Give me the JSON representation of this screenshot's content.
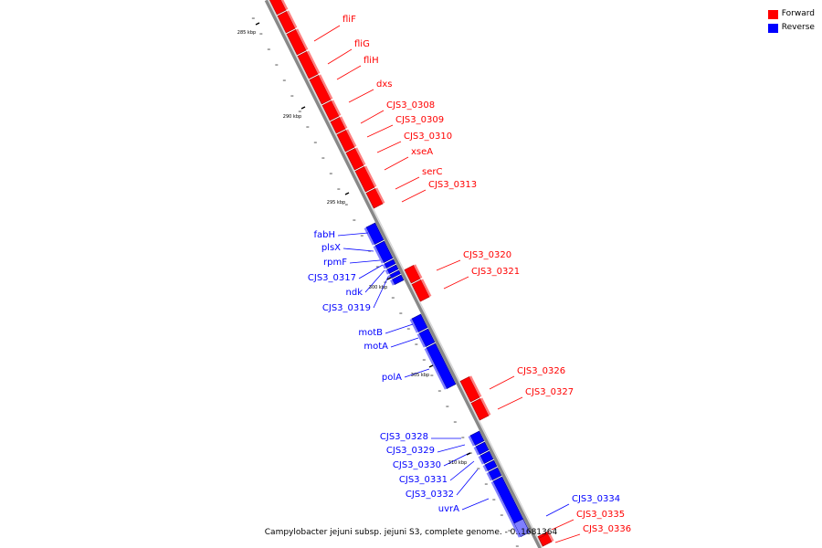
{
  "legend": {
    "forward_label": "Forward",
    "reverse_label": "Reverse",
    "forward_color": "#ff0000",
    "reverse_color": "#0000ff"
  },
  "caption": "Campylobacter jejuni subsp. jejuni S3, complete genome. - 0..1681364",
  "scale_ticks": [
    {
      "kbp": 285,
      "label": "285 kbp"
    },
    {
      "kbp": 290,
      "label": "290 kbp"
    },
    {
      "kbp": 295,
      "label": "295 kbp"
    },
    {
      "kbp": 300,
      "label": "300 kbp"
    },
    {
      "kbp": 305,
      "label": "305 kbp"
    },
    {
      "kbp": 310,
      "label": "310 kbp"
    }
  ],
  "genes": [
    {
      "name": "fliF",
      "strand": "forward"
    },
    {
      "name": "fliG",
      "strand": "forward"
    },
    {
      "name": "fliH",
      "strand": "forward"
    },
    {
      "name": "dxs",
      "strand": "forward"
    },
    {
      "name": "CJS3_0308",
      "strand": "forward"
    },
    {
      "name": "CJS3_0309",
      "strand": "forward"
    },
    {
      "name": "CJS3_0310",
      "strand": "forward"
    },
    {
      "name": "xseA",
      "strand": "forward"
    },
    {
      "name": "serC",
      "strand": "forward"
    },
    {
      "name": "CJS3_0313",
      "strand": "forward"
    },
    {
      "name": "fabH",
      "strand": "reverse"
    },
    {
      "name": "plsX",
      "strand": "reverse"
    },
    {
      "name": "rpmF",
      "strand": "reverse"
    },
    {
      "name": "CJS3_0317",
      "strand": "reverse"
    },
    {
      "name": "ndk",
      "strand": "reverse"
    },
    {
      "name": "CJS3_0319",
      "strand": "reverse"
    },
    {
      "name": "CJS3_0320",
      "strand": "forward"
    },
    {
      "name": "CJS3_0321",
      "strand": "forward"
    },
    {
      "name": "motB",
      "strand": "reverse"
    },
    {
      "name": "motA",
      "strand": "reverse"
    },
    {
      "name": "polA",
      "strand": "reverse"
    },
    {
      "name": "CJS3_0326",
      "strand": "forward"
    },
    {
      "name": "CJS3_0327",
      "strand": "forward"
    },
    {
      "name": "CJS3_0328",
      "strand": "reverse"
    },
    {
      "name": "CJS3_0329",
      "strand": "reverse"
    },
    {
      "name": "CJS3_0330",
      "strand": "reverse"
    },
    {
      "name": "CJS3_0331",
      "strand": "reverse"
    },
    {
      "name": "CJS3_0332",
      "strand": "reverse"
    },
    {
      "name": "uvrA",
      "strand": "reverse"
    },
    {
      "name": "CJS3_0334",
      "strand": "reverse"
    },
    {
      "name": "CJS3_0335",
      "strand": "forward"
    },
    {
      "name": "CJS3_0336",
      "strand": "forward"
    }
  ]
}
